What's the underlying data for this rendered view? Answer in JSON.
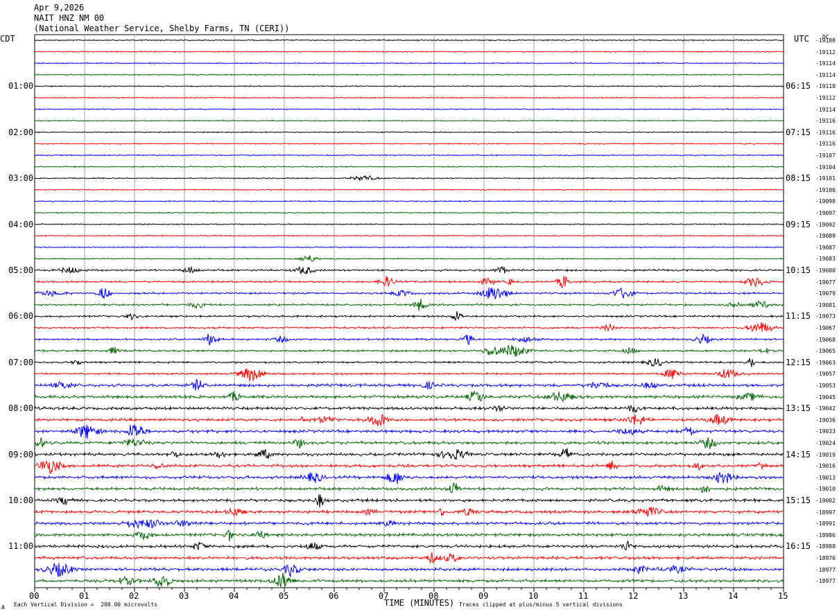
{
  "header": {
    "date": "Apr 9,2026",
    "station": "NAIT HNZ NM 00",
    "network": "(National Weather Service, Shelby Farms, TN (CERI))"
  },
  "labels": {
    "left_tz": "CDT",
    "right_tz": "UTC",
    "right_unit": "DC",
    "x_axis_title": "TIME (MINUTES)",
    "footer_left": "Each Vertical Division =  200.00 microvolts",
    "footer_right": "Traces clipped at plus/minus 5 vertical divisions",
    "corner_mark": "A"
  },
  "colors": {
    "trace_cycle": [
      "#000000",
      "#ff0000",
      "#0000ff",
      "#006400"
    ],
    "grid": "#a0a0a0"
  },
  "chart_data": {
    "type": "line",
    "title": "",
    "xlabel": "TIME (MINUTES)",
    "xlim": [
      0,
      15
    ],
    "x_ticks": [
      "00",
      "01",
      "02",
      "03",
      "04",
      "05",
      "06",
      "07",
      "08",
      "09",
      "10",
      "11",
      "12",
      "13",
      "14",
      "15"
    ],
    "left_hour_labels": [
      "01:00",
      "02:00",
      "03:00",
      "04:00",
      "05:00",
      "06:00",
      "07:00",
      "08:00",
      "09:00",
      "10:00",
      "11:00"
    ],
    "right_hour_labels": [
      "06:15",
      "07:15",
      "08:15",
      "09:15",
      "10:15",
      "11:15",
      "12:15",
      "13:15",
      "14:15",
      "15:15",
      "16:15"
    ],
    "trace_dc_values": [
      "-19108",
      "-19112",
      "-19114",
      "-19114",
      "-19110",
      "-19112",
      "-19114",
      "-19116",
      "-19116",
      "-19116",
      "-19107",
      "-19104",
      "-19101",
      "-19100",
      "-19098",
      "-19097",
      "-19092",
      "-19089",
      "-19087",
      "-19083",
      "-19080",
      "-19077",
      "-19079",
      "-19081",
      "-19073",
      "-19067",
      "-19068",
      "-19065",
      "-19063",
      "-19057",
      "-19053",
      "-19045",
      "-19042",
      "-19036",
      "-19033",
      "-19024",
      "-19019",
      "-19016",
      "-19013",
      "-19010",
      "-19002",
      "-18997",
      "-18991",
      "-18986",
      "-18980",
      "-18976",
      "-18977",
      "-18977"
    ],
    "trace_count": 48,
    "grid": true
  }
}
